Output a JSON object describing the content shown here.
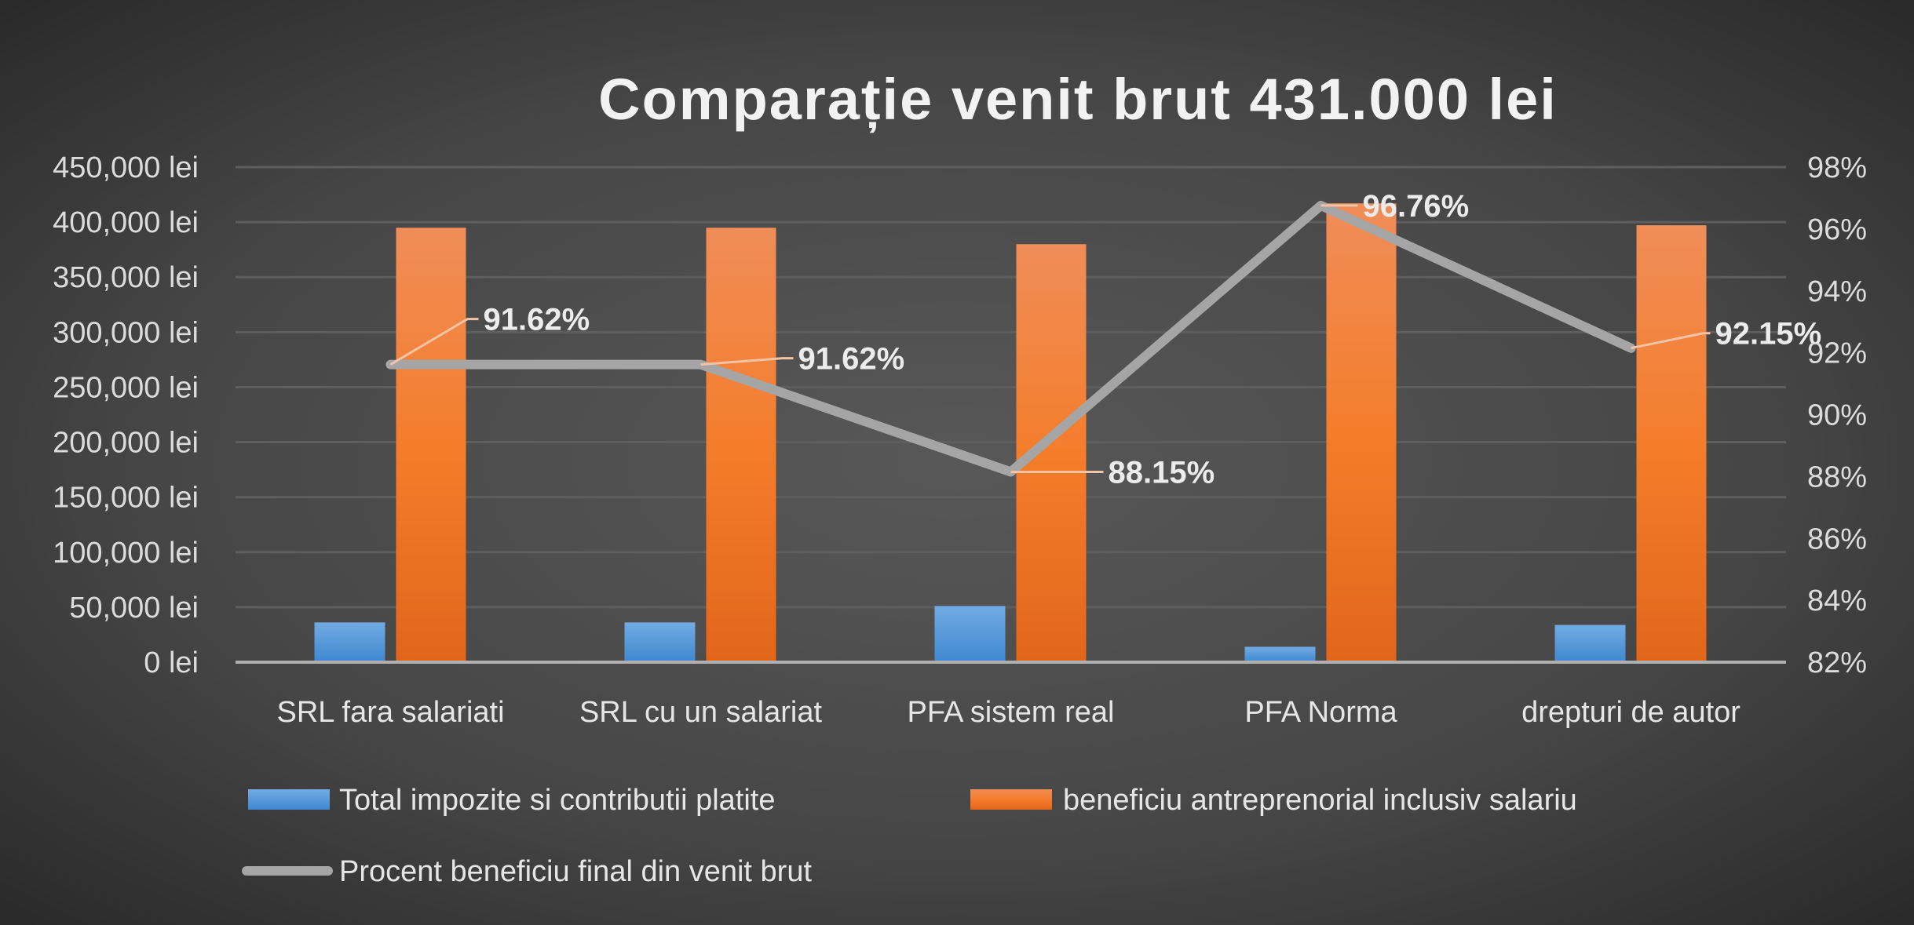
{
  "chart_data": {
    "type": "bar",
    "title": "Comparație venit brut 431.000 lei",
    "categories": [
      "SRL fara salariati",
      "SRL cu un salariat",
      "PFA sistem real",
      "PFA Norma",
      "drepturi de autor"
    ],
    "series": [
      {
        "name": "Total impozite si contributii platite",
        "type": "bar",
        "axis": "left",
        "color": "#4a90d9",
        "values": [
          36118,
          36118,
          51073,
          13964,
          33833
        ]
      },
      {
        "name": "beneficiu antreprenorial inclusiv salariu",
        "type": "bar",
        "axis": "left",
        "color": "#f07a25",
        "values": [
          394882,
          394882,
          379927,
          417036,
          397167
        ]
      },
      {
        "name": "Procent beneficiu final din venit brut",
        "type": "line",
        "axis": "right",
        "color": "#a5a5a5",
        "values": [
          91.62,
          91.62,
          88.15,
          96.76,
          92.15
        ],
        "data_labels": [
          "91.62%",
          "91.62%",
          "88.15%",
          "96.76%",
          "92.15%"
        ]
      }
    ],
    "y_left": {
      "min": 0,
      "max": 450000,
      "step": 50000,
      "tick_labels": [
        "0 lei",
        "50,000 lei",
        "100,000 lei",
        "150,000 lei",
        "200,000 lei",
        "250,000 lei",
        "300,000 lei",
        "350,000 lei",
        "400,000 lei",
        "450,000 lei"
      ]
    },
    "y_right": {
      "min": 82,
      "max": 98,
      "step": 2,
      "tick_labels": [
        "82%",
        "84%",
        "86%",
        "88%",
        "90%",
        "92%",
        "94%",
        "96%",
        "98%"
      ]
    },
    "grid": true,
    "legend_position": "bottom"
  }
}
